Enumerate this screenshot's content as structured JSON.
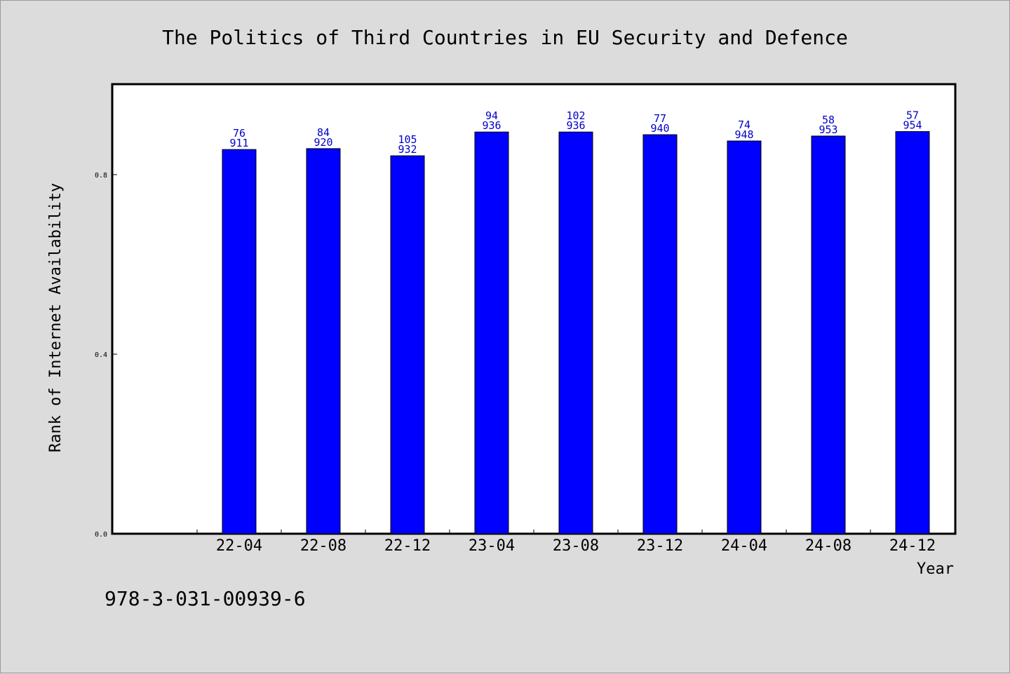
{
  "chart_data": {
    "type": "bar",
    "title": "The Politics of Third Countries in EU Security and Defence",
    "xlabel": "Year",
    "ylabel": "Rank of Internet Availability",
    "categories": [
      "22-04",
      "22-08",
      "22-12",
      "23-04",
      "23-08",
      "23-12",
      "24-04",
      "24-08",
      "24-12"
    ],
    "values": [
      0.856,
      0.858,
      0.842,
      0.895,
      0.895,
      0.889,
      0.875,
      0.886,
      0.896
    ],
    "data_labels_top": [
      "76",
      "84",
      "105",
      "94",
      "102",
      "77",
      "74",
      "58",
      "57"
    ],
    "data_labels_bottom": [
      "911",
      "920",
      "932",
      "936",
      "936",
      "940",
      "948",
      "953",
      "954"
    ],
    "yticks": [
      0.0,
      0.4,
      0.8
    ],
    "ytick_labels": [
      "0.0",
      "0.4",
      "0.8"
    ],
    "ylim": [
      0,
      1.0
    ],
    "grid": false,
    "legend": false,
    "bar_color": "#0000ff",
    "label_color": "#0000c8"
  },
  "footer": {
    "isbn": "978-3-031-00939-6"
  }
}
